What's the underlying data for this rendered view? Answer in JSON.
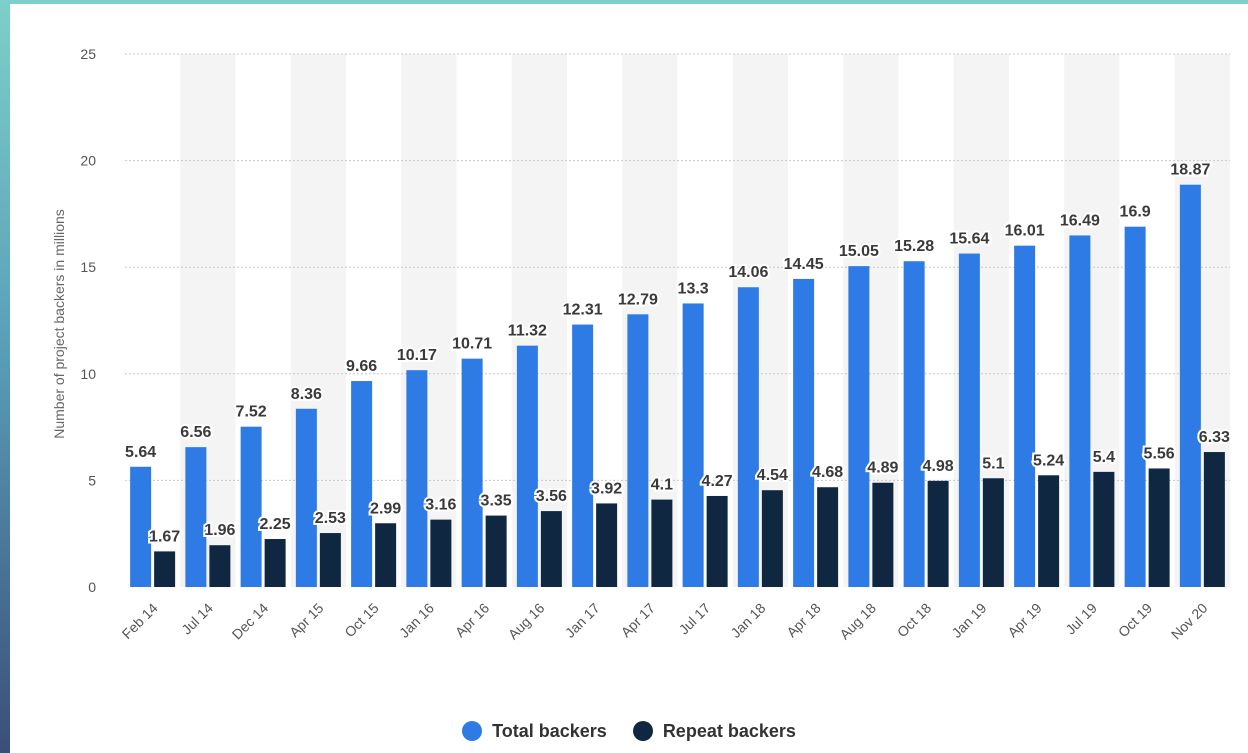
{
  "chart_data": {
    "type": "bar",
    "ylabel": "Number of project backers in millions",
    "ylim": [
      0,
      25
    ],
    "yticks": [
      0,
      5,
      10,
      15,
      20,
      25
    ],
    "grid": true,
    "legend_position": "bottom-center",
    "categories": [
      "Feb 14",
      "Jul 14",
      "Dec 14",
      "Apr 15",
      "Oct 15",
      "Jan 16",
      "Apr 16",
      "Aug 16",
      "Jan 17",
      "Apr 17",
      "Jul 17",
      "Jan 18",
      "Apr 18",
      "Aug 18",
      "Oct 18",
      "Jan 19",
      "Apr 19",
      "Jul 19",
      "Oct 19",
      "Nov 20"
    ],
    "series": [
      {
        "name": "Total backers",
        "color": "#2f7be5",
        "values": [
          5.64,
          6.56,
          7.52,
          8.36,
          9.66,
          10.17,
          10.71,
          11.32,
          12.31,
          12.79,
          13.3,
          14.06,
          14.45,
          15.05,
          15.28,
          15.64,
          16.01,
          16.49,
          16.9,
          18.87
        ]
      },
      {
        "name": "Repeat backers",
        "color": "#0f2740",
        "values": [
          1.67,
          1.96,
          2.25,
          2.53,
          2.99,
          3.16,
          3.35,
          3.56,
          3.92,
          4.1,
          4.27,
          4.54,
          4.68,
          4.89,
          4.98,
          5.1,
          5.24,
          5.4,
          5.56,
          6.33
        ]
      }
    ]
  }
}
